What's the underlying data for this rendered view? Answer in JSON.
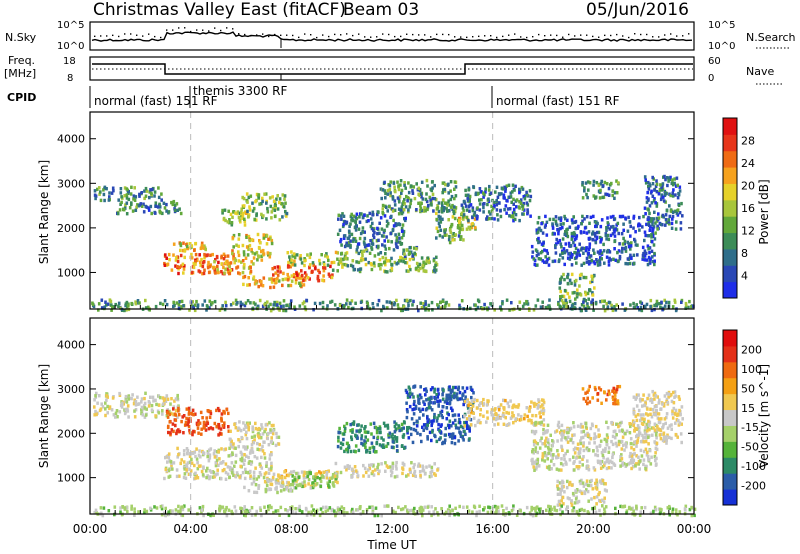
{
  "header": {
    "title": "Christmas Valley East (fitACF)",
    "beam": "Beam 03",
    "date": "05/Jun/2016"
  },
  "panel_labels": {
    "nsky": "N.Sky",
    "nsky_ticks": [
      "10^5",
      "10^0"
    ],
    "nsearch": "N.Search",
    "nsearch_ticks": [
      "10^5",
      "10^0"
    ],
    "freq": "Freq.",
    "freq_unit": "[MHz]",
    "freq_ticks": [
      "18",
      "8"
    ],
    "nave": "Nave",
    "nave_ticks": [
      "60",
      "0"
    ],
    "cpid": "CPID"
  },
  "cpid_segments": [
    {
      "label": "normal (fast) 151 RF",
      "start_h": 0,
      "end_h": 4
    },
    {
      "label": "themis 3300 RF",
      "start_h": 4,
      "end_h": 16
    },
    {
      "label": "normal (fast) 151 RF",
      "start_h": 16,
      "end_h": 24
    }
  ],
  "chart_data": [
    {
      "type": "heatmap",
      "quantity": "Power",
      "ylabel": "Slant Range [km]",
      "xlim_hours": [
        0,
        24
      ],
      "ylim_km": [
        180,
        4600
      ],
      "y_ticks": [
        1000,
        2000,
        3000,
        4000
      ],
      "x_tick_labels": [
        "00:00",
        "04:00",
        "08:00",
        "12:00",
        "16:00",
        "20:00",
        "00:00"
      ],
      "colorbar": {
        "label": "Power [dB]",
        "ticks": [
          "28",
          "24",
          "20",
          "16",
          "12",
          "8",
          "4"
        ],
        "colors": [
          "#1f2ee8",
          "#2a48b5",
          "#2f6e8a",
          "#3c8c57",
          "#62a83a",
          "#a8c63c",
          "#e6d12a",
          "#f6a21e",
          "#ef6b14",
          "#e7351a",
          "#e01111"
        ]
      },
      "scatter_regions": [
        {
          "start_h": 0.1,
          "end_h": 2.9,
          "r1": 2650,
          "r2": 2950,
          "value": 11
        },
        {
          "start_h": 1.0,
          "end_h": 3.6,
          "r1": 2350,
          "r2": 2650,
          "value": 10
        },
        {
          "start_h": 2.9,
          "end_h": 5.6,
          "r1": 1000,
          "r2": 1450,
          "value": 25
        },
        {
          "start_h": 3.2,
          "end_h": 4.6,
          "r1": 1500,
          "r2": 1700,
          "value": 20
        },
        {
          "start_h": 4.8,
          "end_h": 6.5,
          "r1": 1000,
          "r2": 1300,
          "value": 22
        },
        {
          "start_h": 5.6,
          "end_h": 7.2,
          "r1": 1300,
          "r2": 1900,
          "value": 19
        },
        {
          "start_h": 5.2,
          "end_h": 6.2,
          "r1": 2100,
          "r2": 2500,
          "value": 17
        },
        {
          "start_h": 6.0,
          "end_h": 7.8,
          "r1": 2200,
          "r2": 2800,
          "value": 15
        },
        {
          "start_h": 6.0,
          "end_h": 8.5,
          "r1": 700,
          "r2": 950,
          "value": 21
        },
        {
          "start_h": 7.2,
          "end_h": 9.6,
          "r1": 850,
          "r2": 1200,
          "value": 26
        },
        {
          "start_h": 7.8,
          "end_h": 10.2,
          "r1": 1200,
          "r2": 1500,
          "value": 16
        },
        {
          "start_h": 9.6,
          "end_h": 13.8,
          "r1": 1050,
          "r2": 1380,
          "value": 14
        },
        {
          "start_h": 10.5,
          "end_h": 13.0,
          "r1": 1400,
          "r2": 1600,
          "value": 12
        },
        {
          "start_h": 9.8,
          "end_h": 12.5,
          "r1": 1600,
          "r2": 2400,
          "value": 9
        },
        {
          "start_h": 11.5,
          "end_h": 14.5,
          "r1": 2400,
          "r2": 3100,
          "value": 12
        },
        {
          "start_h": 13.7,
          "end_h": 14.8,
          "r1": 1700,
          "r2": 2600,
          "value": 13
        },
        {
          "start_h": 14.6,
          "end_h": 15.4,
          "r1": 2000,
          "r2": 2300,
          "value": 18
        },
        {
          "start_h": 14.8,
          "end_h": 17.5,
          "r1": 2200,
          "r2": 3000,
          "value": 9
        },
        {
          "start_h": 17.5,
          "end_h": 22.5,
          "r1": 1200,
          "r2": 2300,
          "value": 7
        },
        {
          "start_h": 18.6,
          "end_h": 20.0,
          "r1": 400,
          "r2": 1000,
          "value": 14
        },
        {
          "start_h": 19.5,
          "end_h": 21.0,
          "r1": 2700,
          "r2": 3100,
          "value": 10
        },
        {
          "start_h": 22.0,
          "end_h": 23.5,
          "r1": 2000,
          "r2": 3200,
          "value": 9
        },
        {
          "start_h": 0.0,
          "end_h": 24.0,
          "r1": 180,
          "r2": 420,
          "value": 12
        }
      ]
    },
    {
      "type": "heatmap",
      "quantity": "Velocity",
      "ylabel": "Slant Range [km]",
      "xlabel": "Time UT",
      "xlim_hours": [
        0,
        24
      ],
      "ylim_km": [
        180,
        4600
      ],
      "y_ticks": [
        1000,
        2000,
        3000,
        4000
      ],
      "x_tick_labels": [
        "00:00",
        "04:00",
        "08:00",
        "12:00",
        "16:00",
        "20:00",
        "00:00"
      ],
      "colorbar": {
        "label": "Velocity [m s^-1]",
        "ticks": [
          "200",
          "100",
          "50",
          "15",
          "-15",
          "-50",
          "-100",
          "-200"
        ],
        "colors": [
          "#1631d6",
          "#2b5da8",
          "#2c8a66",
          "#55b33a",
          "#a5d06a",
          "#c8c8c8",
          "#f0c850",
          "#f4a014",
          "#ef6a10",
          "#e43018",
          "#e00d0d"
        ]
      },
      "scatter_regions": [
        {
          "start_h": 0.1,
          "end_h": 3.5,
          "r1": 2400,
          "r2": 2950,
          "value": -5
        },
        {
          "start_h": 2.9,
          "end_h": 7.2,
          "r1": 1000,
          "r2": 1700,
          "value": 0
        },
        {
          "start_h": 3.0,
          "end_h": 5.5,
          "r1": 2000,
          "r2": 2600,
          "value": 150
        },
        {
          "start_h": 5.5,
          "end_h": 7.5,
          "r1": 1700,
          "r2": 2300,
          "value": 5
        },
        {
          "start_h": 6.0,
          "end_h": 8.0,
          "r1": 700,
          "r2": 1000,
          "value": -10
        },
        {
          "start_h": 7.2,
          "end_h": 9.8,
          "r1": 800,
          "r2": 1200,
          "value": 35
        },
        {
          "start_h": 8.0,
          "end_h": 9.8,
          "r1": 800,
          "r2": 1150,
          "value": -60
        },
        {
          "start_h": 9.6,
          "end_h": 13.8,
          "r1": 1050,
          "r2": 1380,
          "value": 2
        },
        {
          "start_h": 9.8,
          "end_h": 12.5,
          "r1": 1600,
          "r2": 2300,
          "value": -130
        },
        {
          "start_h": 12.5,
          "end_h": 15.2,
          "r1": 1800,
          "r2": 3100,
          "value": -180
        },
        {
          "start_h": 14.8,
          "end_h": 18.0,
          "r1": 2200,
          "r2": 2800,
          "value": 30
        },
        {
          "start_h": 17.5,
          "end_h": 22.5,
          "r1": 1200,
          "r2": 2300,
          "value": -5
        },
        {
          "start_h": 18.5,
          "end_h": 20.5,
          "r1": 400,
          "r2": 1000,
          "value": 0
        },
        {
          "start_h": 19.5,
          "end_h": 21.0,
          "r1": 2700,
          "r2": 3100,
          "value": 120
        },
        {
          "start_h": 21.5,
          "end_h": 23.5,
          "r1": 1800,
          "r2": 3000,
          "value": 25
        },
        {
          "start_h": 0.0,
          "end_h": 24.0,
          "r1": 180,
          "r2": 400,
          "value": -40
        }
      ]
    }
  ]
}
